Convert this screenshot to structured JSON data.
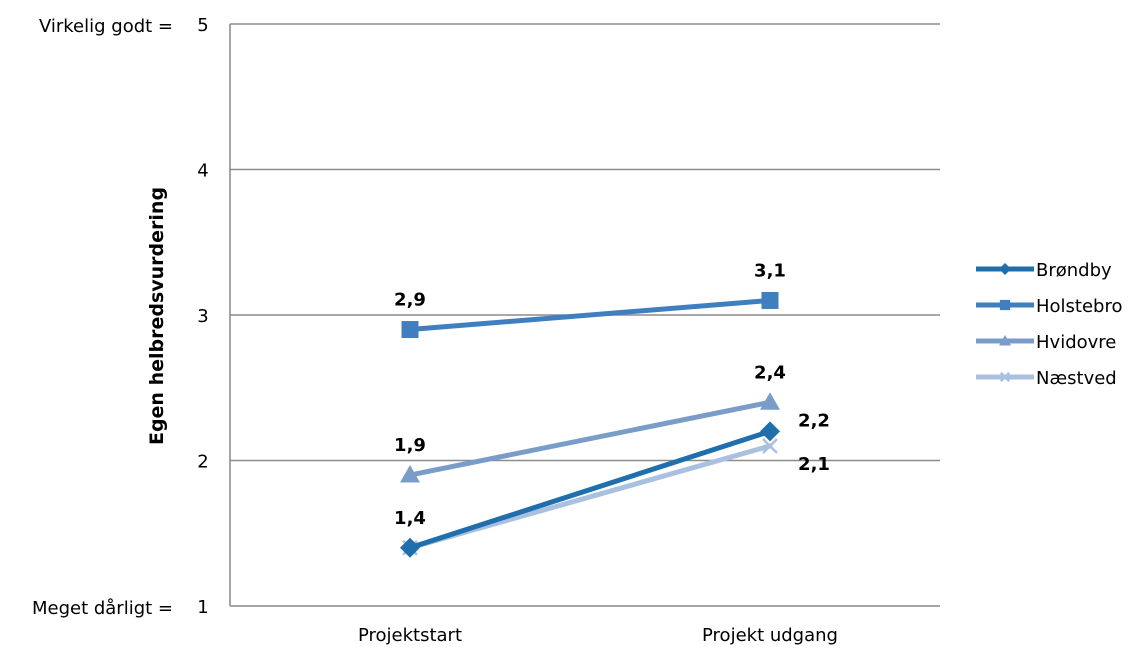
{
  "chart_data": {
    "type": "line",
    "categories": [
      "Projektstart",
      "Projekt udgang"
    ],
    "series": [
      {
        "name": "Brøndby",
        "values": [
          1.4,
          2.2
        ],
        "color": "#1f6fad",
        "marker": "diamond",
        "labels": [
          "1,4",
          "2,2"
        ]
      },
      {
        "name": "Holstebro",
        "values": [
          2.9,
          3.1
        ],
        "color": "#3f7fc0",
        "marker": "square",
        "labels": [
          "2,9",
          "3,1"
        ]
      },
      {
        "name": "Hvidovre",
        "values": [
          1.9,
          2.4
        ],
        "color": "#7a9cc9",
        "marker": "triangle",
        "labels": [
          "1,9",
          "2,4"
        ]
      },
      {
        "name": "Næstved",
        "values": [
          1.4,
          2.1
        ],
        "color": "#a9c0e0",
        "marker": "x",
        "labels": [
          "",
          "2,1"
        ]
      }
    ],
    "ylim": [
      1,
      5
    ],
    "yticks": [
      "1",
      "2",
      "3",
      "4",
      "5"
    ],
    "ylabel": "Egen helbredsvurdering",
    "ytick_annotations": {
      "top": "Virkelig godt =",
      "bottom": "Meget dårligt ="
    },
    "grid": true,
    "legend": "right"
  }
}
